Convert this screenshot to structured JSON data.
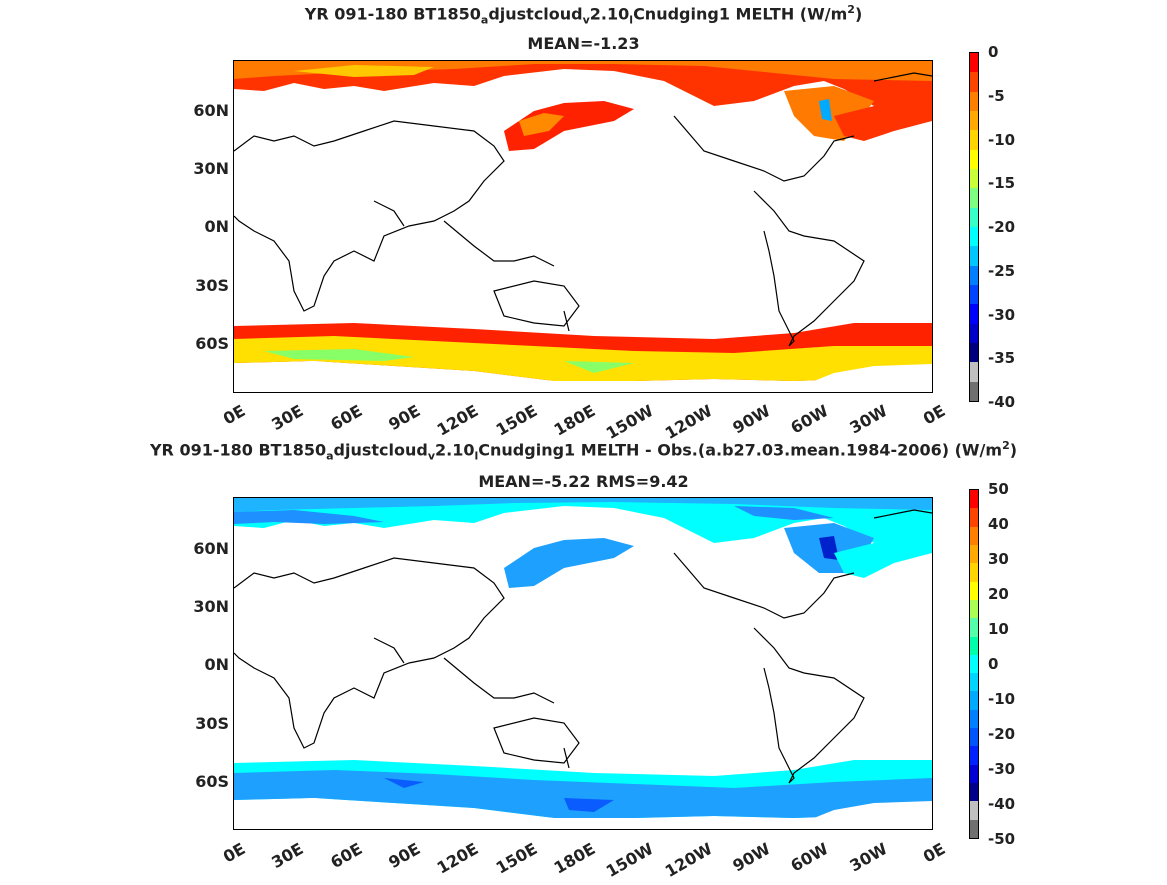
{
  "panels": [
    {
      "title_parts": [
        "YR 091-180 BT1850",
        "a",
        "djustcloud",
        "v",
        "2.10",
        "l",
        "Cnudging1  MELTH (W/m",
        "2",
        ")"
      ],
      "subtitle": "MEAN=-1.23",
      "colorbar": {
        "ticks": [
          "0",
          "-5",
          "-10",
          "-15",
          "-20",
          "-25",
          "-30",
          "-35",
          "-40"
        ],
        "colors": [
          "#ff0000",
          "#ff4400",
          "#ff7f00",
          "#ffaa00",
          "#ffd400",
          "#ffff00",
          "#c8ff38",
          "#7fff7f",
          "#38ffc8",
          "#00ffff",
          "#00c8ff",
          "#007fff",
          "#0044ff",
          "#0000ff",
          "#0000c8",
          "#00007f",
          "#c0c0c0",
          "#707070"
        ]
      },
      "field": "melth"
    },
    {
      "title_parts": [
        "YR 091-180 BT1850",
        "a",
        "djustcloud",
        "v",
        "2.10",
        "l",
        "Cnudging1 MELTH - Obs.(a.b27.03.mean.1984-2006) (W/m",
        "2",
        ")"
      ],
      "subtitle": "MEAN=-5.22 RMS=9.42",
      "colorbar": {
        "ticks": [
          "50",
          "40",
          "30",
          "20",
          "10",
          "0",
          "-10",
          "-20",
          "-30",
          "-40",
          "-50"
        ],
        "colors": [
          "#ff0000",
          "#ff4400",
          "#ff7f00",
          "#ffaa00",
          "#ffd400",
          "#ffff00",
          "#aaff55",
          "#55ffaa",
          "#00ffaa",
          "#00ffff",
          "#00d4ff",
          "#00aaff",
          "#007fff",
          "#0055ff",
          "#0022ff",
          "#0000d4",
          "#00008b",
          "#c0c0c0",
          "#707070"
        ]
      },
      "field": "diff"
    }
  ],
  "lat_labels": [
    "60N",
    "30N",
    "0N",
    "30S",
    "60S"
  ],
  "lon_labels": [
    "0E",
    "30E",
    "60E",
    "90E",
    "120E",
    "150E",
    "180E",
    "150W",
    "120W",
    "90W",
    "60W",
    "30W",
    "0E"
  ]
}
